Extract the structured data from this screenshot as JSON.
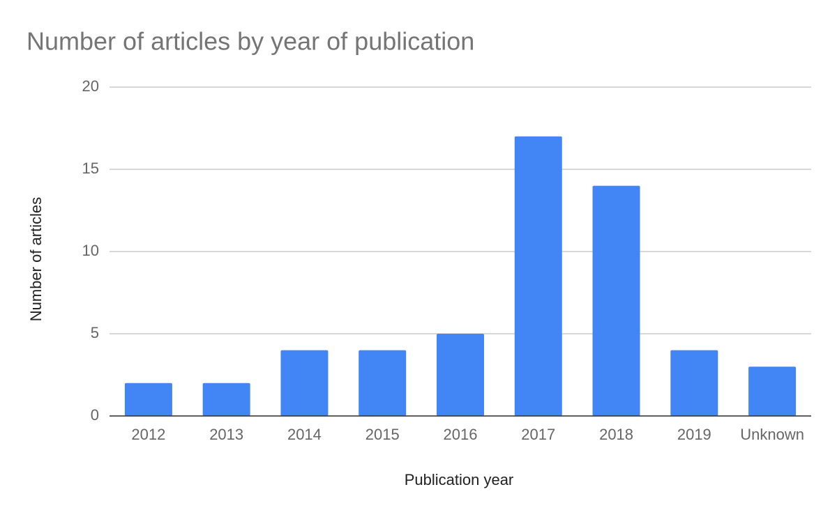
{
  "chart_data": {
    "type": "bar",
    "title": "Number of articles by year of publication",
    "x_label": "Publication year",
    "y_label": "Number of articles",
    "categories": [
      "2012",
      "2013",
      "2014",
      "2015",
      "2016",
      "2017",
      "2018",
      "2019",
      "Unknown"
    ],
    "values": [
      2,
      2,
      4,
      4,
      5,
      17,
      14,
      4,
      3
    ],
    "color": "#4285f4",
    "ylim": [
      0,
      20
    ],
    "yticks": [
      0,
      5,
      10,
      15,
      20
    ],
    "grid": true
  }
}
